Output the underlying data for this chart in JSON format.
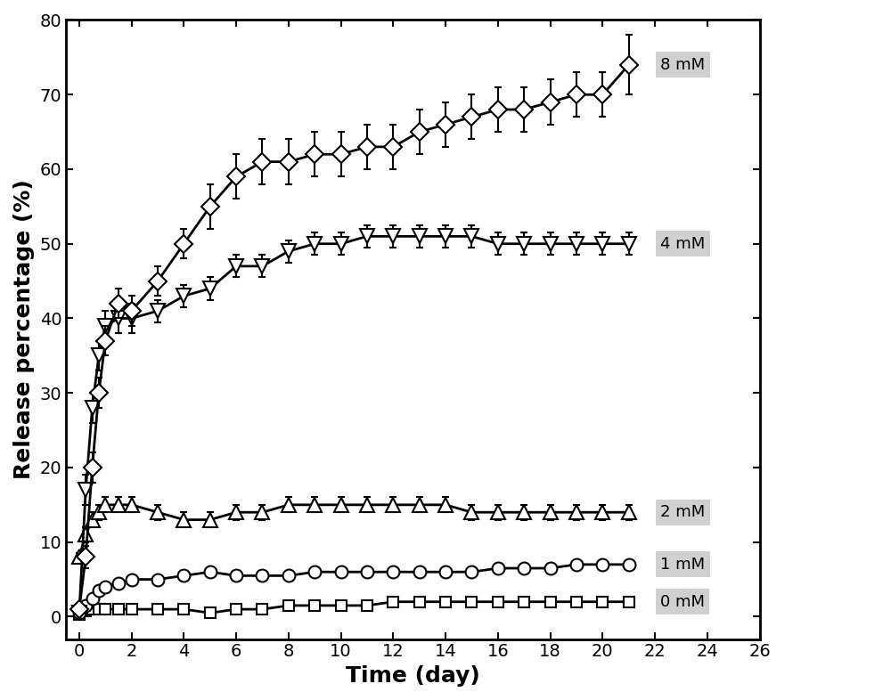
{
  "series": [
    {
      "label": "8 mM",
      "marker": "D",
      "x": [
        0,
        0.25,
        0.5,
        0.75,
        1,
        1.5,
        2,
        3,
        4,
        5,
        6,
        7,
        8,
        9,
        10,
        11,
        12,
        13,
        14,
        15,
        16,
        17,
        18,
        19,
        20,
        21
      ],
      "y": [
        1,
        8,
        20,
        30,
        37,
        42,
        41,
        45,
        50,
        55,
        59,
        61,
        61,
        62,
        62,
        63,
        63,
        65,
        66,
        67,
        68,
        68,
        69,
        70,
        70,
        74
      ],
      "yerr": [
        0.5,
        1.5,
        2,
        2,
        2,
        2,
        2,
        2,
        2,
        3,
        3,
        3,
        3,
        3,
        3,
        3,
        3,
        3,
        3,
        3,
        3,
        3,
        3,
        3,
        3,
        4
      ]
    },
    {
      "label": "4 mM",
      "marker": "v",
      "x": [
        0,
        0.25,
        0.5,
        0.75,
        1,
        1.5,
        2,
        3,
        4,
        5,
        6,
        7,
        8,
        9,
        10,
        11,
        12,
        13,
        14,
        15,
        16,
        17,
        18,
        19,
        20,
        21
      ],
      "y": [
        0.5,
        17,
        28,
        35,
        39,
        40,
        40,
        41,
        43,
        44,
        47,
        47,
        49,
        50,
        50,
        51,
        51,
        51,
        51,
        51,
        50,
        50,
        50,
        50,
        50,
        50
      ],
      "yerr": [
        0.3,
        2,
        2,
        2,
        2,
        2,
        2,
        1.5,
        1.5,
        1.5,
        1.5,
        1.5,
        1.5,
        1.5,
        1.5,
        1.5,
        1.5,
        1.5,
        1.5,
        1.5,
        1.5,
        1.5,
        1.5,
        1.5,
        1.5,
        1.5
      ]
    },
    {
      "label": "2 mM",
      "marker": "^",
      "x": [
        0,
        0.25,
        0.5,
        0.75,
        1,
        1.5,
        2,
        3,
        4,
        5,
        6,
        7,
        8,
        9,
        10,
        11,
        12,
        13,
        14,
        15,
        16,
        17,
        18,
        19,
        20,
        21
      ],
      "y": [
        8,
        11,
        13,
        14,
        15,
        15,
        15,
        14,
        13,
        13,
        14,
        14,
        15,
        15,
        15,
        15,
        15,
        15,
        15,
        14,
        14,
        14,
        14,
        14,
        14,
        14
      ],
      "yerr": [
        0.5,
        1,
        1,
        1,
        1,
        1,
        1,
        1,
        1,
        1,
        1,
        1,
        1,
        1,
        1,
        1,
        1,
        1,
        1,
        1,
        1,
        1,
        1,
        1,
        1,
        1
      ]
    },
    {
      "label": "1 mM",
      "marker": "o",
      "x": [
        0,
        0.25,
        0.5,
        0.75,
        1,
        1.5,
        2,
        3,
        4,
        5,
        6,
        7,
        8,
        9,
        10,
        11,
        12,
        13,
        14,
        15,
        16,
        17,
        18,
        19,
        20,
        21
      ],
      "y": [
        0.5,
        1.5,
        2.5,
        3.5,
        4,
        4.5,
        5,
        5,
        5.5,
        6,
        5.5,
        5.5,
        5.5,
        6,
        6,
        6,
        6,
        6,
        6,
        6,
        6.5,
        6.5,
        6.5,
        7,
        7,
        7
      ],
      "yerr": [
        0.3,
        0.5,
        0.5,
        0.5,
        0.5,
        0.5,
        0.5,
        0.5,
        0.5,
        0.5,
        0.5,
        0.5,
        0.5,
        0.5,
        0.5,
        0.5,
        0.5,
        0.5,
        0.5,
        0.5,
        0.5,
        0.5,
        0.5,
        0.5,
        0.5,
        0.5
      ]
    },
    {
      "label": "0 mM",
      "marker": "s",
      "x": [
        0,
        0.25,
        0.5,
        0.75,
        1,
        1.5,
        2,
        3,
        4,
        5,
        6,
        7,
        8,
        9,
        10,
        11,
        12,
        13,
        14,
        15,
        16,
        17,
        18,
        19,
        20,
        21
      ],
      "y": [
        0.3,
        0.8,
        1,
        1,
        1,
        1,
        1,
        1,
        1,
        0.5,
        1,
        1,
        1.5,
        1.5,
        1.5,
        1.5,
        2,
        2,
        2,
        2,
        2,
        2,
        2,
        2,
        2,
        2
      ],
      "yerr": [
        0.2,
        0.3,
        0.3,
        0.3,
        0.3,
        0.3,
        0.3,
        0.3,
        0.3,
        0.3,
        0.3,
        0.3,
        0.3,
        0.3,
        0.3,
        0.3,
        0.3,
        0.3,
        0.3,
        0.3,
        0.3,
        0.3,
        0.3,
        0.3,
        0.3,
        0.3
      ]
    }
  ],
  "xlabel": "Time (day)",
  "ylabel": "Release percentage (%)",
  "xlim": [
    -0.5,
    26
  ],
  "ylim": [
    -3,
    80
  ],
  "xticks": [
    0,
    2,
    4,
    6,
    8,
    10,
    12,
    14,
    16,
    18,
    20,
    22,
    24,
    26
  ],
  "yticks": [
    0,
    10,
    20,
    30,
    40,
    50,
    60,
    70,
    80
  ],
  "line_color": "#000000",
  "marker_sizes": [
    10,
    11,
    11,
    10,
    9
  ],
  "line_width": 2,
  "capsize": 3,
  "elinewidth": 1.5,
  "legend_labels": [
    "8 mM",
    "4 mM",
    "2 mM",
    "1 mM",
    "0 mM"
  ],
  "legend_y_data": [
    74,
    50,
    14,
    7,
    2
  ],
  "background_color": "#ffffff",
  "tick_fontsize": 14,
  "label_fontsize": 18,
  "legend_fontsize": 13
}
